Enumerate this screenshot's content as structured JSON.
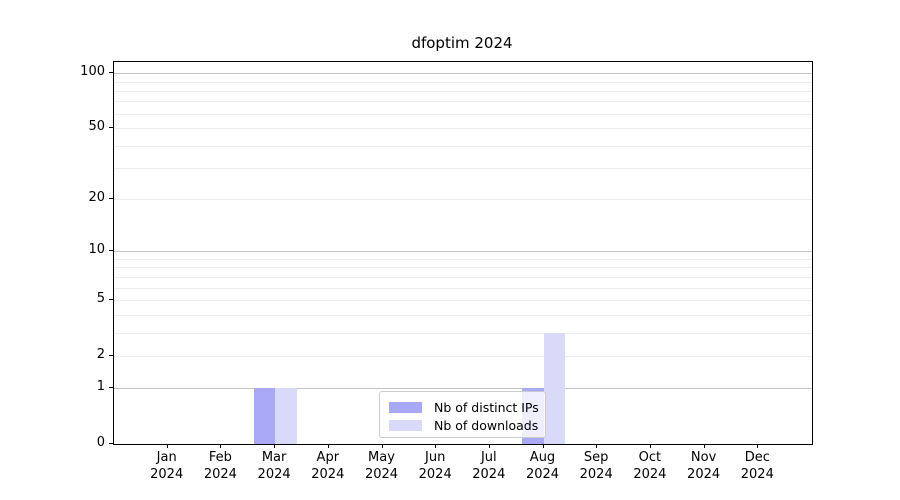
{
  "title": "dfoptim 2024",
  "chart_data": {
    "type": "bar",
    "title": "dfoptim 2024",
    "x": {
      "months": [
        "Jan",
        "Feb",
        "Mar",
        "Apr",
        "May",
        "Jun",
        "Jul",
        "Aug",
        "Sep",
        "Oct",
        "Nov",
        "Dec"
      ],
      "year": "2024"
    },
    "series": [
      {
        "name": "Nb of distinct IPs",
        "color": "#a8a8f5",
        "values": [
          0,
          0,
          1,
          0,
          0,
          0,
          0,
          1,
          0,
          0,
          0,
          0
        ]
      },
      {
        "name": "Nb of downloads",
        "color": "#d9d9fa",
        "values": [
          0,
          0,
          1,
          0,
          0,
          0,
          0,
          3,
          0,
          0,
          0,
          0
        ]
      }
    ],
    "yscale": "log1p",
    "ylim": [
      0,
      115
    ],
    "yticks": [
      0,
      1,
      2,
      5,
      10,
      20,
      50,
      100
    ],
    "gridlines": {
      "major": [
        1,
        10,
        100
      ],
      "minor": [
        2,
        3,
        4,
        5,
        6,
        7,
        8,
        9,
        20,
        30,
        40,
        50,
        60,
        70,
        80,
        90
      ]
    },
    "legend": {
      "position": "lower center"
    },
    "colors": {
      "axis": "#000000",
      "major_grid": "#c4c4c4",
      "minor_grid": "#ededed",
      "background": "#ffffff"
    }
  }
}
